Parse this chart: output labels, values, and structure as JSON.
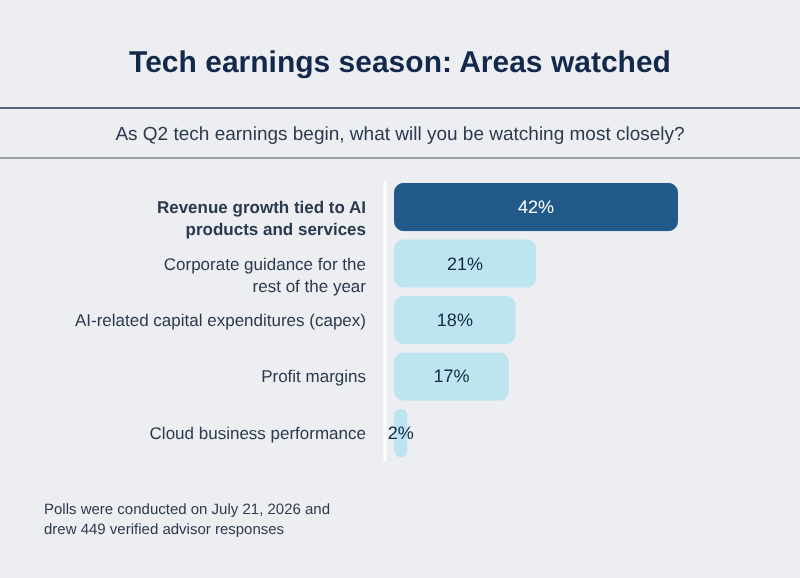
{
  "chart_data": {
    "type": "bar",
    "orientation": "horizontal",
    "title": "Tech earnings season: Areas watched",
    "subtitle": "As Q2 tech earnings begin, what will you be watching most closely?",
    "categories": [
      "Revenue growth tied to AI products and services",
      "Corporate guidance for the rest of the year",
      "AI-related capital expenditures (capex)",
      "Profit margins",
      "Cloud business performance"
    ],
    "values": [
      42,
      21,
      18,
      17,
      2
    ],
    "value_labels": [
      "42%",
      "21%",
      "18%",
      "17%",
      "2%"
    ],
    "colors": [
      "#215a8a",
      "#bde5f0",
      "#bde5f0",
      "#bde5f0",
      "#bde5f0"
    ],
    "annotations": [
      "Polls were conducted on July 21, 2026 and drew 449 verified advisor responses"
    ]
  }
}
